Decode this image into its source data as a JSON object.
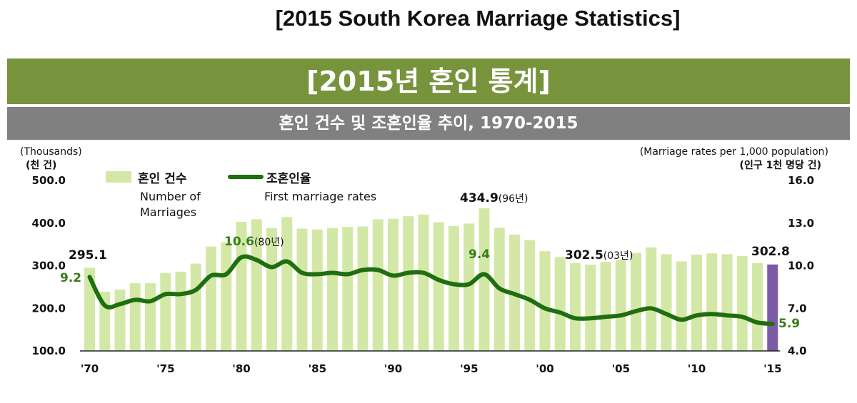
{
  "page_title": "[2015 South Korea Marriage Statistics]",
  "banner_title": "[2015년 혼인 통계]",
  "banner_subtitle": "혼인 건수 및 조혼인율 추이, 1970-2015",
  "colors": {
    "bar": "#d3e8a6",
    "bar_highlight": "#7b5aa6",
    "line": "#1f6e0f",
    "banner_green": "#77933c",
    "banner_gray": "#808080"
  },
  "chart_data": {
    "type": "bar+line",
    "x_tick_labels": [
      "'70",
      "'75",
      "'80",
      "'85",
      "'90",
      "'95",
      "'00",
      "'05",
      "'10",
      "'15"
    ],
    "years": [
      1970,
      1971,
      1972,
      1973,
      1974,
      1975,
      1976,
      1977,
      1978,
      1979,
      1980,
      1981,
      1982,
      1983,
      1984,
      1985,
      1986,
      1987,
      1988,
      1989,
      1990,
      1991,
      1992,
      1993,
      1994,
      1995,
      1996,
      1997,
      1998,
      1999,
      2000,
      2001,
      2002,
      2003,
      2004,
      2005,
      2006,
      2007,
      2008,
      2009,
      2010,
      2011,
      2012,
      2013,
      2014,
      2015
    ],
    "left_axis": {
      "label": "(Thousands)",
      "label_kr": "(천 건)",
      "ylim": [
        100,
        500
      ],
      "ticks": [
        "500.0",
        "400.0",
        "300.0",
        "200.0",
        "100.0"
      ]
    },
    "right_axis": {
      "label": "(Marriage rates per 1,000 population)",
      "label_kr": "(인구 1천 명당 건)",
      "ylim": [
        4.0,
        16.0
      ],
      "ticks": [
        "16.0",
        "13.0",
        "10.0",
        "7.0",
        "4.0"
      ]
    },
    "series": [
      {
        "name": "혼인 건수",
        "name_en_line1": "Number of",
        "name_en_line2": "Marriages",
        "type": "bar",
        "values": [
          295.1,
          239,
          244,
          259,
          259,
          283,
          286,
          305,
          345,
          355,
          403,
          409,
          388,
          414,
          387,
          385,
          388,
          391,
          392,
          409,
          410,
          416,
          420,
          402,
          393,
          399,
          434.9,
          389,
          373,
          360,
          334,
          320,
          306,
          302.5,
          309,
          314,
          330,
          343,
          327,
          310,
          326,
          329,
          327,
          323,
          306,
          302.8
        ]
      },
      {
        "name": "조혼인율",
        "name_en": "First marriage rates",
        "type": "line",
        "values": [
          9.2,
          7.2,
          7.3,
          7.6,
          7.5,
          8.0,
          8.0,
          8.3,
          9.3,
          9.4,
          10.6,
          10.4,
          9.9,
          10.3,
          9.5,
          9.4,
          9.5,
          9.4,
          9.7,
          9.7,
          9.3,
          9.5,
          9.5,
          9.0,
          8.7,
          8.7,
          9.4,
          8.4,
          8.0,
          7.6,
          7.0,
          6.7,
          6.3,
          6.3,
          6.4,
          6.5,
          6.8,
          7.0,
          6.6,
          6.2,
          6.5,
          6.6,
          6.5,
          6.4,
          6.0,
          5.9
        ]
      }
    ],
    "annotations": [
      {
        "text": "295.1",
        "year": 1970,
        "axis": "left"
      },
      {
        "text": "9.2",
        "year": 1970,
        "axis": "right"
      },
      {
        "text": "10.6",
        "suffix": "(80년)",
        "year": 1980,
        "axis": "right"
      },
      {
        "text": "434.9",
        "suffix": "(96년)",
        "year": 1996,
        "axis": "left"
      },
      {
        "text": "9.4",
        "year": 1996,
        "axis": "right"
      },
      {
        "text": "302.5",
        "suffix": "(03년)",
        "year": 2003,
        "axis": "left"
      },
      {
        "text": "302.8",
        "year": 2015,
        "axis": "left"
      },
      {
        "text": "5.9",
        "year": 2015,
        "axis": "right"
      }
    ]
  }
}
